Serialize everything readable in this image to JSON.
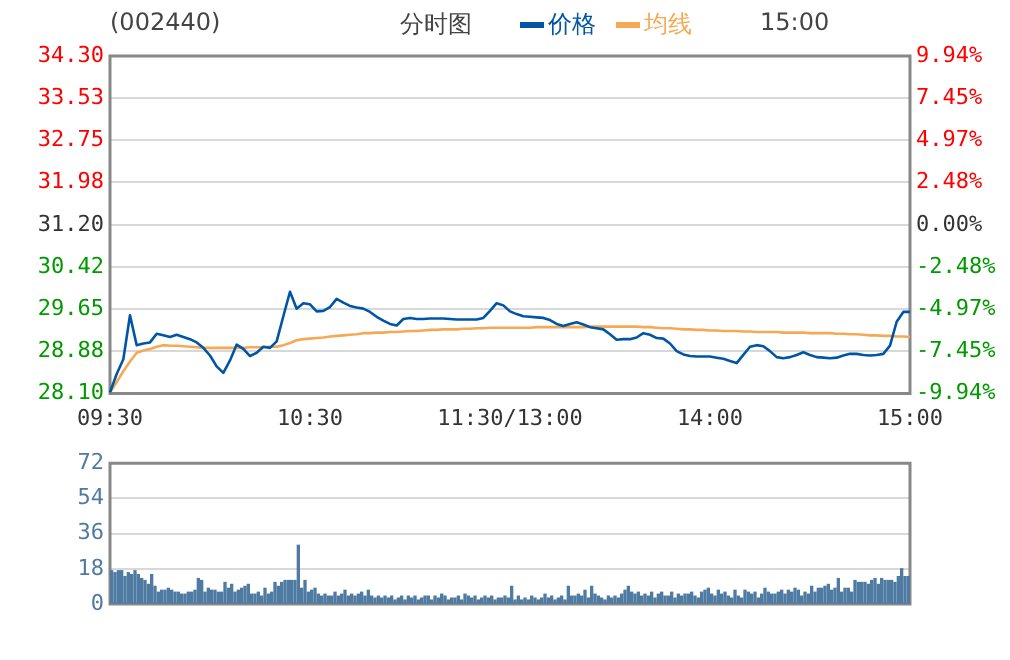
{
  "chart_data": [
    {
      "type": "line",
      "title": "(002440)",
      "subtitle": "分时图",
      "annotations": [
        "15:00"
      ],
      "legend": "top",
      "grid": "y",
      "marker": "none",
      "line_style": "solid",
      "categories": [
        "09:30",
        null,
        null,
        null,
        null,
        null,
        null,
        null,
        null,
        null,
        null,
        null,
        null,
        null,
        null,
        null,
        null,
        null,
        null,
        null,
        null,
        null,
        null,
        null,
        null,
        null,
        null,
        null,
        null,
        null,
        "10:30",
        null,
        null,
        null,
        null,
        null,
        null,
        null,
        null,
        null,
        null,
        null,
        null,
        null,
        null,
        null,
        null,
        null,
        null,
        null,
        null,
        null,
        null,
        null,
        null,
        null,
        null,
        null,
        null,
        null,
        "11:30/13:00",
        null,
        null,
        null,
        null,
        null,
        null,
        null,
        null,
        null,
        null,
        null,
        null,
        null,
        null,
        null,
        null,
        null,
        null,
        null,
        null,
        null,
        null,
        null,
        null,
        null,
        null,
        null,
        null,
        null,
        "14:00",
        null,
        null,
        null,
        null,
        null,
        null,
        null,
        null,
        null,
        null,
        null,
        null,
        null,
        null,
        null,
        null,
        null,
        null,
        null,
        null,
        null,
        null,
        null,
        null,
        null,
        null,
        null,
        null,
        null,
        "15:00"
      ],
      "ylim": [
        28.1,
        34.3
      ],
      "yticks": [
        {
          "value": 28.1,
          "label": "28.10"
        },
        28.88,
        29.65,
        30.42,
        {
          "value": 31.2,
          "label": "31.20"
        },
        31.98,
        32.75,
        33.53,
        {
          "value": 34.3,
          "label": "34.30"
        }
      ],
      "y2lim": [
        -9.94,
        9.94
      ],
      "y2ticks": [
        {
          "value": -9.94,
          "label": "-9.94%"
        },
        {
          "value": -7.45,
          "label": "-7.45%"
        },
        {
          "value": -4.97,
          "label": "-4.97%"
        },
        {
          "value": -2.48,
          "label": "-2.48%"
        },
        {
          "value": 0,
          "label": "0.00%"
        },
        {
          "value": 2.48,
          "label": "2.48%"
        },
        {
          "value": 4.97,
          "label": "4.97%"
        },
        {
          "value": 7.45,
          "label": "7.45%"
        },
        {
          "value": 9.94,
          "label": "9.94%"
        }
      ],
      "series": [
        {
          "name": "价格",
          "color": "#0055a5",
          "values": [
            28.12,
            28.46,
            28.73,
            29.54,
            28.99,
            29.02,
            29.04,
            29.2,
            29.17,
            29.14,
            29.18,
            29.14,
            29.1,
            29.04,
            28.94,
            28.8,
            28.6,
            28.48,
            28.71,
            29.0,
            28.92,
            28.79,
            28.85,
            28.96,
            28.94,
            29.06,
            29.52,
            29.97,
            29.66,
            29.76,
            29.74,
            29.61,
            29.62,
            29.69,
            29.84,
            29.77,
            29.71,
            29.68,
            29.66,
            29.6,
            29.51,
            29.44,
            29.38,
            29.35,
            29.47,
            29.49,
            29.47,
            29.47,
            29.48,
            29.48,
            29.48,
            29.47,
            29.46,
            29.46,
            29.46,
            29.46,
            29.49,
            29.62,
            29.76,
            29.72,
            29.61,
            29.56,
            29.52,
            29.51,
            29.5,
            29.49,
            29.45,
            29.38,
            29.34,
            29.38,
            29.41,
            29.37,
            29.32,
            29.3,
            29.28,
            29.19,
            29.09,
            29.1,
            29.1,
            29.13,
            29.21,
            29.18,
            29.12,
            29.11,
            29.02,
            28.88,
            28.82,
            28.79,
            28.78,
            28.78,
            28.78,
            28.76,
            28.74,
            28.7,
            28.66,
            28.81,
            28.96,
            28.99,
            28.97,
            28.88,
            28.77,
            28.75,
            28.77,
            28.81,
            28.86,
            28.81,
            28.77,
            28.76,
            28.75,
            28.76,
            28.8,
            28.83,
            28.83,
            28.81,
            28.8,
            28.81,
            28.83,
            28.98,
            29.42,
            29.6,
            29.6
          ]
        },
        {
          "name": "均线",
          "color": "#f5a955",
          "values": [
            28.12,
            28.31,
            28.51,
            28.69,
            28.85,
            28.89,
            28.92,
            28.96,
            28.99,
            28.98,
            28.98,
            28.97,
            28.96,
            28.95,
            28.94,
            28.94,
            28.94,
            28.94,
            28.94,
            28.94,
            28.94,
            28.95,
            28.95,
            28.95,
            28.96,
            28.96,
            28.99,
            29.03,
            29.08,
            29.1,
            29.11,
            29.12,
            29.13,
            29.15,
            29.16,
            29.17,
            29.18,
            29.19,
            29.21,
            29.21,
            29.22,
            29.22,
            29.23,
            29.23,
            29.24,
            29.25,
            29.25,
            29.26,
            29.27,
            29.27,
            29.28,
            29.28,
            29.28,
            29.29,
            29.29,
            29.3,
            29.3,
            29.31,
            29.31,
            29.31,
            29.31,
            29.31,
            29.31,
            29.31,
            29.32,
            29.32,
            29.32,
            29.32,
            29.32,
            29.32,
            29.32,
            29.32,
            29.33,
            29.33,
            29.33,
            29.33,
            29.33,
            29.33,
            29.33,
            29.33,
            29.32,
            29.32,
            29.31,
            29.3,
            29.3,
            29.29,
            29.28,
            29.28,
            29.27,
            29.27,
            29.26,
            29.26,
            29.25,
            29.25,
            29.25,
            29.24,
            29.24,
            29.23,
            29.23,
            29.23,
            29.23,
            29.22,
            29.22,
            29.22,
            29.22,
            29.21,
            29.21,
            29.21,
            29.21,
            29.2,
            29.2,
            29.19,
            29.19,
            29.18,
            29.17,
            29.17,
            29.16,
            29.16,
            29.15,
            29.15,
            29.14
          ]
        }
      ]
    },
    {
      "type": "bar",
      "grid": "y",
      "tick_labels": "y",
      "color": "#4f7ba3",
      "categories": [
        null,
        null,
        null,
        null,
        null,
        null,
        null,
        null,
        null,
        null,
        null,
        null,
        null,
        null,
        null,
        null,
        null,
        null,
        null,
        null,
        null,
        null,
        null,
        null,
        null,
        null,
        null,
        null,
        null,
        null,
        null,
        null,
        null,
        null,
        null,
        null,
        null,
        null,
        null,
        null,
        null,
        null,
        null,
        null,
        null,
        null,
        null,
        null,
        null,
        null,
        null,
        null,
        null,
        null,
        null,
        null,
        null,
        null,
        null,
        null,
        null,
        null,
        null,
        null,
        null,
        null,
        null,
        null,
        null,
        null,
        null,
        null,
        null,
        null,
        null,
        null,
        null,
        null,
        null,
        null,
        null,
        null,
        null,
        null,
        null,
        null,
        null,
        null,
        null,
        null,
        null,
        null,
        null,
        null,
        null,
        null,
        null,
        null,
        null,
        null,
        null,
        null,
        null,
        null,
        null,
        null,
        null,
        null,
        null,
        null,
        null,
        null,
        null,
        null,
        null,
        null,
        null,
        null,
        null,
        null,
        null,
        null,
        null,
        null,
        null,
        null,
        null,
        null,
        null,
        null,
        null,
        null,
        null,
        null,
        null,
        null,
        null,
        null,
        null,
        null,
        null,
        null,
        null,
        null,
        null,
        null,
        null,
        null,
        null,
        null,
        null,
        null,
        null,
        null,
        null,
        null,
        null,
        null,
        null,
        null,
        null,
        null,
        null,
        null,
        null,
        null,
        null,
        null,
        null,
        null,
        null,
        null,
        null,
        null,
        null,
        null,
        null,
        null,
        null,
        null,
        null,
        null,
        null,
        null,
        null,
        null,
        null,
        null,
        null,
        null,
        null,
        null,
        null,
        null,
        null,
        null,
        null,
        null,
        null,
        null,
        null,
        null,
        null,
        null,
        null,
        null,
        null,
        null,
        null,
        null,
        null,
        null,
        null,
        null,
        null,
        null,
        null,
        null,
        null,
        null,
        null,
        null,
        null,
        null,
        null,
        null,
        null,
        null,
        null,
        null,
        null,
        null,
        null,
        null,
        null,
        null,
        null,
        null,
        null,
        null
      ],
      "ylim": [
        0,
        72
      ],
      "yticks": [
        0,
        18,
        36,
        54,
        72
      ],
      "values": [
        17,
        16,
        17,
        17,
        14,
        16,
        15,
        17,
        15,
        13,
        12,
        10,
        15,
        9,
        6,
        7,
        7,
        8,
        7,
        6,
        6,
        5,
        5,
        6,
        6,
        7,
        13,
        12,
        6,
        8,
        7,
        7,
        6,
        6,
        11,
        8,
        10,
        6,
        7,
        8,
        9,
        10,
        5,
        5,
        6,
        4,
        8,
        5,
        6,
        11,
        9,
        11,
        12,
        12,
        12,
        12,
        30,
        8,
        12,
        6,
        7,
        8,
        5,
        4,
        5,
        4,
        4,
        6,
        4,
        5,
        7,
        4,
        5,
        4,
        5,
        6,
        4,
        7,
        4,
        3,
        4,
        3,
        4,
        3,
        4,
        2,
        3,
        4,
        2,
        4,
        3,
        4,
        2,
        3,
        4,
        4,
        2,
        4,
        3,
        5,
        4,
        2,
        3,
        3,
        4,
        2,
        5,
        4,
        3,
        4,
        2,
        3,
        4,
        3,
        4,
        2,
        3,
        3,
        4,
        3,
        9,
        2,
        4,
        2,
        3,
        2,
        4,
        3,
        2,
        3,
        5,
        3,
        4,
        2,
        3,
        4,
        2,
        9,
        4,
        4,
        5,
        4,
        7,
        3,
        9,
        5,
        4,
        3,
        2,
        4,
        3,
        4,
        3,
        5,
        7,
        9,
        6,
        5,
        6,
        4,
        5,
        4,
        6,
        3,
        5,
        6,
        4,
        4,
        6,
        3,
        5,
        4,
        5,
        5,
        6,
        4,
        3,
        6,
        7,
        8,
        5,
        4,
        7,
        5,
        6,
        4,
        3,
        7,
        4,
        3,
        7,
        6,
        5,
        6,
        3,
        5,
        8,
        6,
        5,
        5,
        6,
        7,
        5,
        7,
        6,
        8,
        7,
        4,
        6,
        5,
        9,
        6,
        8,
        8,
        9,
        10,
        7,
        8,
        13,
        6,
        8,
        8,
        6,
        12,
        11,
        11,
        11,
        10,
        12,
        13,
        10,
        13,
        12,
        12,
        12,
        11,
        14,
        18,
        14,
        14
      ]
    }
  ]
}
